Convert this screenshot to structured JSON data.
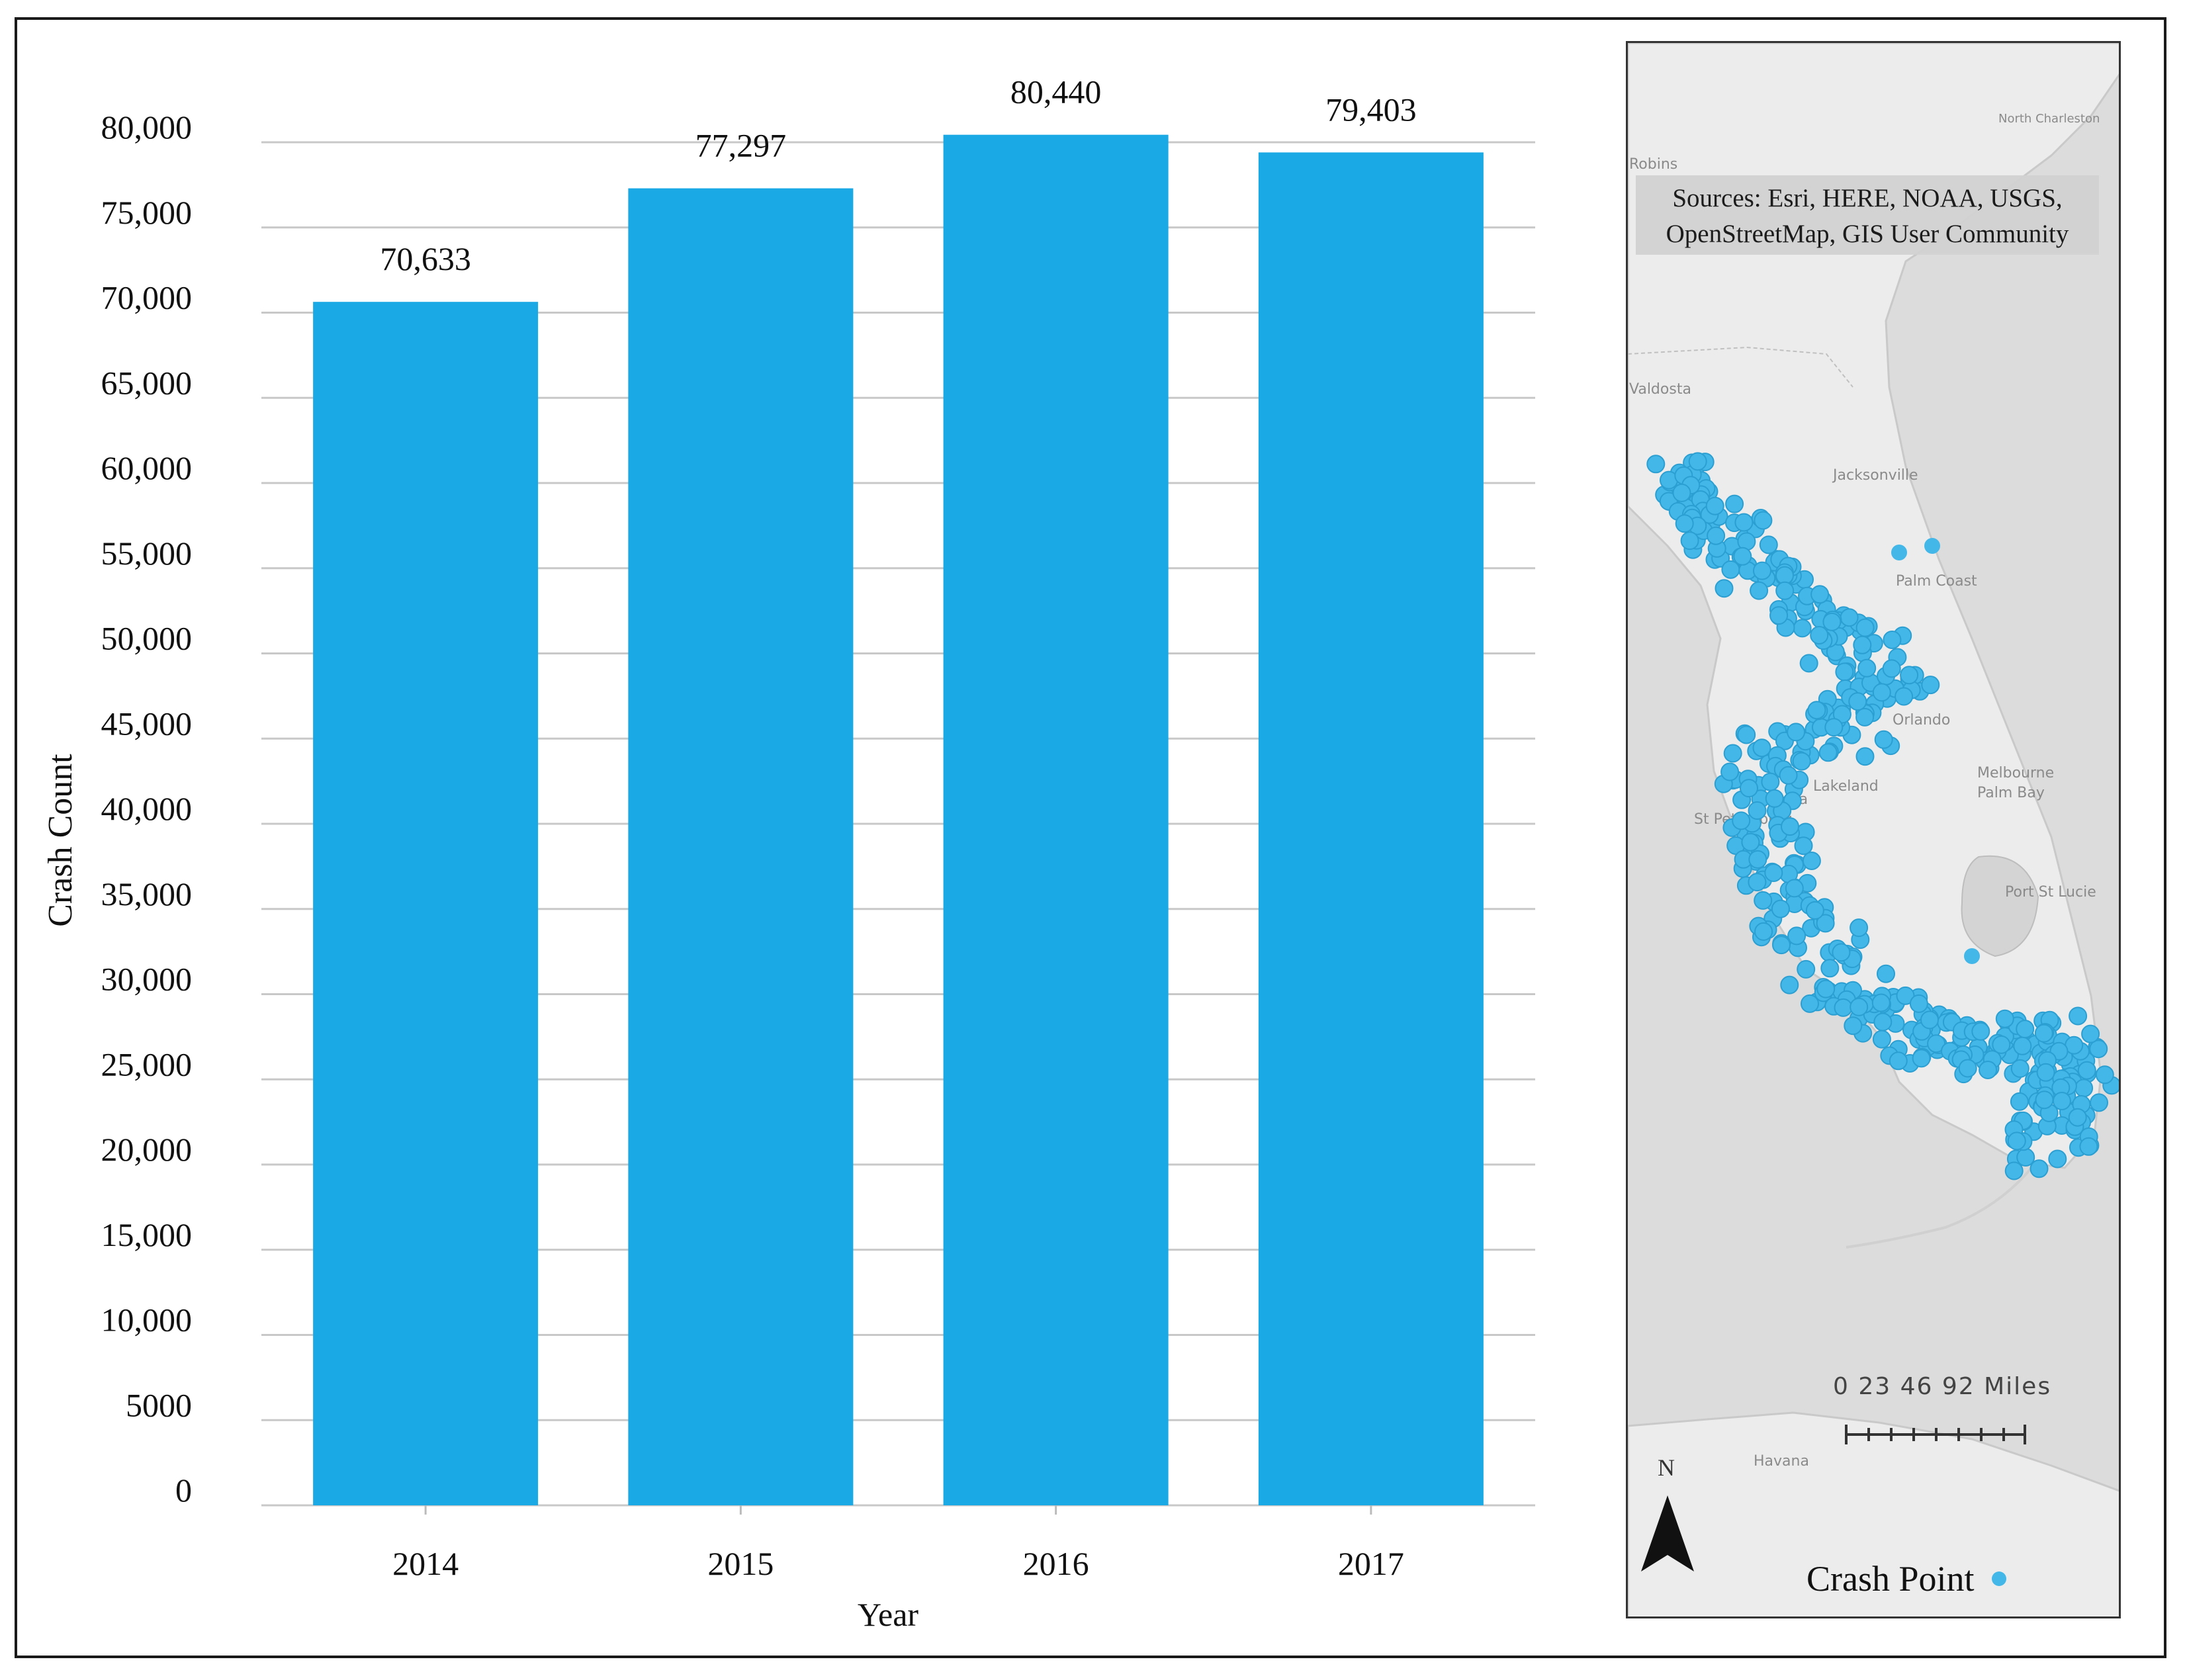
{
  "chart_data": {
    "type": "bar",
    "categories": [
      "2014",
      "2015",
      "2016",
      "2017"
    ],
    "values": [
      70633,
      77297,
      80440,
      79403
    ],
    "data_labels": [
      "70,633",
      "77,297",
      "80,440",
      "79,403"
    ],
    "xlabel": "Year",
    "ylabel": "Crash Count",
    "ylim": [
      0,
      80000
    ],
    "yticks": [
      0,
      5000,
      10000,
      15000,
      20000,
      25000,
      30000,
      35000,
      40000,
      45000,
      50000,
      55000,
      60000,
      65000,
      70000,
      75000,
      80000
    ],
    "ytick_labels": [
      "0",
      "5000",
      "10,000",
      "15,000",
      "20,000",
      "25,000",
      "30,000",
      "35,000",
      "40,000",
      "45,000",
      "50,000",
      "55,000",
      "60,000",
      "65,000",
      "70,000",
      "75,000",
      "80,000"
    ],
    "grid": true,
    "bar_color": "#1aa9e5",
    "grid_color": "#c8c8c8"
  },
  "map": {
    "attribution": "Sources: Esri, HERE, NOAA, USGS, OpenStreetMap, GIS User Community",
    "scale_label": "0  23  46       92 Miles",
    "north_label": "N",
    "legend_label": "Crash Point",
    "point_color": "#43b7e8",
    "place_labels": [
      "Valdosta",
      "Jacksonville",
      "Palm Coast",
      "Orlando",
      "Lakeland",
      "Tampa",
      "St Petersburg",
      "Melbourne",
      "Palm Bay",
      "Port St Lucie",
      "Havana",
      "Robins",
      "North Charleston"
    ]
  }
}
